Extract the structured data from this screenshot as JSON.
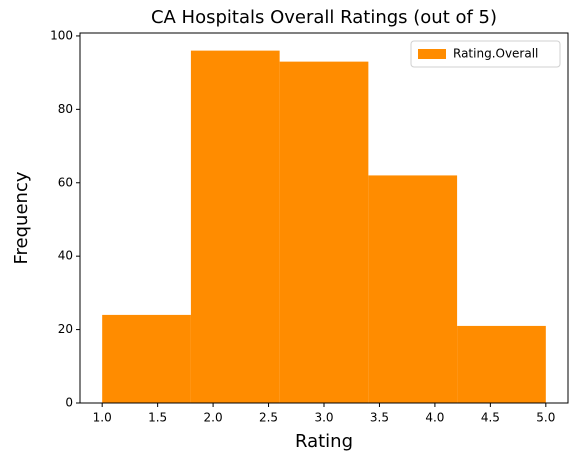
{
  "chart_data": {
    "type": "histogram",
    "title": "CA Hospitals Overall Ratings (out of 5)",
    "x_label": "Rating",
    "y_label": "Frequency",
    "bins": [
      1.0,
      1.8,
      2.6,
      3.4,
      4.2,
      5.0
    ],
    "series": [
      {
        "name": "Rating.Overall",
        "color": "#ff8c00",
        "values": [
          24,
          96,
          93,
          62,
          21
        ]
      }
    ],
    "xlim": [
      0.8,
      5.2
    ],
    "xticks": [
      {
        "value": 1,
        "label": "1.0"
      },
      {
        "value": 1.5,
        "label": "1.5"
      },
      {
        "value": 2,
        "label": "2.0"
      },
      {
        "value": 2.5,
        "label": "2.5"
      },
      {
        "value": 3,
        "label": "3.0"
      },
      {
        "value": 3.5,
        "label": "3.5"
      },
      {
        "value": 4,
        "label": "4.0"
      },
      {
        "value": 4.5,
        "label": "4.5"
      },
      {
        "value": 5,
        "label": "5.0"
      }
    ],
    "ylim": [
      0,
      100.8
    ],
    "yticks": [
      0,
      20,
      40,
      60,
      80,
      100
    ],
    "legend": "upper right",
    "grid": false
  }
}
